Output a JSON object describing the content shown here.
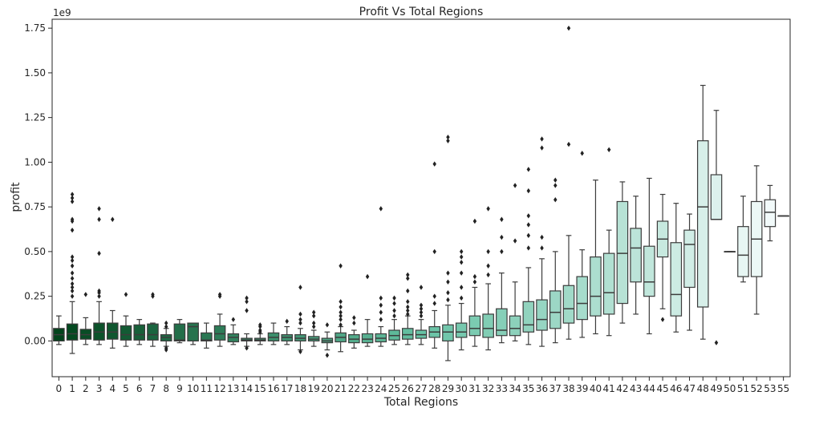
{
  "chart_data": {
    "type": "box",
    "title": "Profit Vs Total Regions",
    "xlabel": "Total Regions",
    "ylabel": "profit",
    "y_offset_label": "1e9",
    "y_unit_multiplier": 1000000000,
    "ylim": [
      -0.2,
      1.8
    ],
    "yticks": [
      0.0,
      0.25,
      0.5,
      0.75,
      1.0,
      1.25,
      1.5,
      1.75
    ],
    "ytick_labels": [
      "0.00",
      "0.25",
      "0.50",
      "0.75",
      "1.00",
      "1.25",
      "1.50",
      "1.75"
    ],
    "categories": [
      "0",
      "1",
      "2",
      "3",
      "4",
      "5",
      "6",
      "7",
      "8",
      "9",
      "10",
      "11",
      "12",
      "13",
      "14",
      "15",
      "16",
      "17",
      "18",
      "19",
      "20",
      "21",
      "22",
      "23",
      "24",
      "25",
      "26",
      "27",
      "28",
      "29",
      "30",
      "31",
      "32",
      "33",
      "34",
      "35",
      "36",
      "37",
      "38",
      "39",
      "40",
      "41",
      "42",
      "43",
      "44",
      "45",
      "46",
      "47",
      "48",
      "49",
      "50",
      "51",
      "52",
      "53",
      "55"
    ],
    "colors": {
      "palette_start": "#00441b",
      "palette_mid": "#66c2a4",
      "palette_end": "#f7fcfd",
      "line": "#3c3c3c",
      "flier": "#222222"
    },
    "boxes": [
      {
        "category": "0",
        "whislo": -0.02,
        "q1": 0.0,
        "med": 0.035,
        "q3": 0.07,
        "whishi": 0.14,
        "fliers": []
      },
      {
        "category": "1",
        "whislo": -0.07,
        "q1": 0.005,
        "med": 0.04,
        "q3": 0.095,
        "whishi": 0.22,
        "fliers": [
          0.25,
          0.28,
          0.3,
          0.32,
          0.35,
          0.38,
          0.42,
          0.45,
          0.47,
          0.62,
          0.67,
          0.68,
          0.78,
          0.8,
          0.82
        ]
      },
      {
        "category": "2",
        "whislo": -0.02,
        "q1": 0.01,
        "med": 0.035,
        "q3": 0.065,
        "whishi": 0.13,
        "fliers": [
          0.26
        ]
      },
      {
        "category": "3",
        "whislo": -0.02,
        "q1": 0.005,
        "med": 0.05,
        "q3": 0.1,
        "whishi": 0.22,
        "fliers": [
          0.25,
          0.27,
          0.28,
          0.49,
          0.68,
          0.74
        ]
      },
      {
        "category": "4",
        "whislo": -0.04,
        "q1": 0.01,
        "med": 0.05,
        "q3": 0.1,
        "whishi": 0.17,
        "fliers": [
          0.68
        ]
      },
      {
        "category": "5",
        "whislo": -0.03,
        "q1": 0.005,
        "med": 0.035,
        "q3": 0.085,
        "whishi": 0.14,
        "fliers": [
          0.26
        ]
      },
      {
        "category": "6",
        "whislo": -0.02,
        "q1": 0.005,
        "med": 0.035,
        "q3": 0.09,
        "whishi": 0.12,
        "fliers": []
      },
      {
        "category": "7",
        "whislo": -0.03,
        "q1": 0.005,
        "med": 0.035,
        "q3": 0.095,
        "whishi": 0.1,
        "fliers": [
          0.25,
          0.26
        ]
      },
      {
        "category": "8",
        "whislo": -0.03,
        "q1": 0.0,
        "med": 0.02,
        "q3": 0.035,
        "whishi": 0.07,
        "fliers": [
          -0.05,
          -0.04,
          0.08,
          0.1
        ]
      },
      {
        "category": "9",
        "whislo": -0.01,
        "q1": 0.0,
        "med": 0.005,
        "q3": 0.095,
        "whishi": 0.12,
        "fliers": []
      },
      {
        "category": "10",
        "whislo": -0.02,
        "q1": 0.0,
        "med": 0.08,
        "q3": 0.1,
        "whishi": 0.1,
        "fliers": []
      },
      {
        "category": "11",
        "whislo": -0.04,
        "q1": 0.0,
        "med": 0.005,
        "q3": 0.045,
        "whishi": 0.1,
        "fliers": []
      },
      {
        "category": "12",
        "whislo": -0.03,
        "q1": 0.005,
        "med": 0.04,
        "q3": 0.085,
        "whishi": 0.15,
        "fliers": [
          0.25,
          0.26
        ]
      },
      {
        "category": "13",
        "whislo": -0.02,
        "q1": -0.005,
        "med": 0.02,
        "q3": 0.04,
        "whishi": 0.09,
        "fliers": [
          0.12
        ]
      },
      {
        "category": "14",
        "whislo": -0.03,
        "q1": 0.0,
        "med": 0.005,
        "q3": 0.015,
        "whishi": 0.04,
        "fliers": [
          -0.04,
          0.17,
          0.22,
          0.24
        ]
      },
      {
        "category": "15",
        "whislo": -0.02,
        "q1": 0.0,
        "med": 0.005,
        "q3": 0.015,
        "whishi": 0.04,
        "fliers": [
          0.05,
          0.06,
          0.08,
          0.09
        ]
      },
      {
        "category": "16",
        "whislo": -0.02,
        "q1": 0.0,
        "med": 0.02,
        "q3": 0.045,
        "whishi": 0.1,
        "fliers": []
      },
      {
        "category": "17",
        "whislo": -0.02,
        "q1": 0.0,
        "med": 0.02,
        "q3": 0.035,
        "whishi": 0.08,
        "fliers": [
          0.11
        ]
      },
      {
        "category": "18",
        "whislo": -0.05,
        "q1": 0.0,
        "med": 0.015,
        "q3": 0.035,
        "whishi": 0.07,
        "fliers": [
          -0.06,
          0.1,
          0.12,
          0.15,
          0.3
        ]
      },
      {
        "category": "19",
        "whislo": -0.03,
        "q1": 0.0,
        "med": 0.01,
        "q3": 0.025,
        "whishi": 0.06,
        "fliers": [
          0.08,
          0.1,
          0.14,
          0.16
        ]
      },
      {
        "category": "20",
        "whislo": -0.05,
        "q1": -0.01,
        "med": 0.0,
        "q3": 0.015,
        "whishi": 0.05,
        "fliers": [
          -0.08,
          0.09
        ]
      },
      {
        "category": "21",
        "whislo": -0.06,
        "q1": -0.005,
        "med": 0.02,
        "q3": 0.045,
        "whishi": 0.08,
        "fliers": [
          0.09,
          0.12,
          0.14,
          0.16,
          0.19,
          0.22,
          0.42
        ]
      },
      {
        "category": "22",
        "whislo": -0.04,
        "q1": -0.01,
        "med": 0.01,
        "q3": 0.035,
        "whishi": 0.06,
        "fliers": [
          0.1,
          0.13
        ]
      },
      {
        "category": "23",
        "whislo": -0.03,
        "q1": -0.01,
        "med": 0.01,
        "q3": 0.04,
        "whishi": 0.12,
        "fliers": [
          0.36
        ]
      },
      {
        "category": "24",
        "whislo": -0.03,
        "q1": -0.005,
        "med": 0.015,
        "q3": 0.04,
        "whishi": 0.08,
        "fliers": [
          0.12,
          0.16,
          0.2,
          0.24,
          0.74
        ]
      },
      {
        "category": "25",
        "whislo": -0.02,
        "q1": 0.005,
        "med": 0.03,
        "q3": 0.06,
        "whishi": 0.12,
        "fliers": [
          0.14,
          0.17,
          0.21,
          0.24
        ]
      },
      {
        "category": "26",
        "whislo": -0.02,
        "q1": 0.01,
        "med": 0.035,
        "q3": 0.07,
        "whishi": 0.14,
        "fliers": [
          0.15,
          0.17,
          0.19,
          0.22,
          0.28,
          0.35,
          0.37
        ]
      },
      {
        "category": "27",
        "whislo": -0.02,
        "q1": 0.015,
        "med": 0.035,
        "q3": 0.06,
        "whishi": 0.12,
        "fliers": [
          0.14,
          0.16,
          0.18,
          0.2,
          0.3
        ]
      },
      {
        "category": "28",
        "whislo": -0.04,
        "q1": 0.02,
        "med": 0.05,
        "q3": 0.08,
        "whishi": 0.17,
        "fliers": [
          0.21,
          0.25,
          0.5,
          0.99
        ]
      },
      {
        "category": "29",
        "whislo": -0.11,
        "q1": 0.0,
        "med": 0.05,
        "q3": 0.09,
        "whishi": 0.2,
        "fliers": [
          0.23,
          0.27,
          0.33,
          0.38,
          1.12,
          1.14
        ]
      },
      {
        "category": "30",
        "whislo": -0.05,
        "q1": 0.02,
        "med": 0.05,
        "q3": 0.1,
        "whishi": 0.21,
        "fliers": [
          0.24,
          0.3,
          0.38,
          0.44,
          0.47,
          0.5
        ]
      },
      {
        "category": "31",
        "whislo": -0.03,
        "q1": 0.03,
        "med": 0.07,
        "q3": 0.14,
        "whishi": 0.3,
        "fliers": [
          0.33,
          0.36,
          0.67
        ]
      },
      {
        "category": "32",
        "whislo": -0.05,
        "q1": 0.02,
        "med": 0.07,
        "q3": 0.15,
        "whishi": 0.32,
        "fliers": [
          0.37,
          0.42,
          0.5,
          0.74
        ]
      },
      {
        "category": "33",
        "whislo": -0.01,
        "q1": 0.03,
        "med": 0.06,
        "q3": 0.18,
        "whishi": 0.38,
        "fliers": [
          0.5,
          0.58,
          0.68
        ]
      },
      {
        "category": "34",
        "whislo": 0.0,
        "q1": 0.03,
        "med": 0.07,
        "q3": 0.14,
        "whishi": 0.33,
        "fliers": [
          0.56,
          0.87
        ]
      },
      {
        "category": "35",
        "whislo": -0.02,
        "q1": 0.05,
        "med": 0.09,
        "q3": 0.22,
        "whishi": 0.41,
        "fliers": [
          0.52,
          0.59,
          0.65,
          0.7,
          0.84,
          0.96
        ]
      },
      {
        "category": "36",
        "whislo": -0.03,
        "q1": 0.06,
        "med": 0.12,
        "q3": 0.23,
        "whishi": 0.46,
        "fliers": [
          0.52,
          0.58,
          1.08,
          1.13
        ]
      },
      {
        "category": "37",
        "whislo": -0.01,
        "q1": 0.07,
        "med": 0.16,
        "q3": 0.28,
        "whishi": 0.5,
        "fliers": [
          0.79,
          0.87,
          0.9
        ]
      },
      {
        "category": "38",
        "whislo": 0.01,
        "q1": 0.1,
        "med": 0.18,
        "q3": 0.31,
        "whishi": 0.59,
        "fliers": [
          1.1,
          1.75
        ]
      },
      {
        "category": "39",
        "whislo": 0.02,
        "q1": 0.12,
        "med": 0.21,
        "q3": 0.36,
        "whishi": 0.51,
        "fliers": [
          1.05
        ]
      },
      {
        "category": "40",
        "whislo": 0.04,
        "q1": 0.14,
        "med": 0.25,
        "q3": 0.47,
        "whishi": 0.9,
        "fliers": []
      },
      {
        "category": "41",
        "whislo": 0.03,
        "q1": 0.15,
        "med": 0.27,
        "q3": 0.49,
        "whishi": 0.62,
        "fliers": [
          1.07
        ]
      },
      {
        "category": "42",
        "whislo": 0.1,
        "q1": 0.21,
        "med": 0.49,
        "q3": 0.78,
        "whishi": 0.89,
        "fliers": []
      },
      {
        "category": "43",
        "whislo": 0.15,
        "q1": 0.33,
        "med": 0.52,
        "q3": 0.63,
        "whishi": 0.81,
        "fliers": []
      },
      {
        "category": "44",
        "whislo": 0.04,
        "q1": 0.25,
        "med": 0.33,
        "q3": 0.53,
        "whishi": 0.91,
        "fliers": []
      },
      {
        "category": "45",
        "whislo": 0.18,
        "q1": 0.47,
        "med": 0.57,
        "q3": 0.67,
        "whishi": 0.82,
        "fliers": [
          0.12
        ]
      },
      {
        "category": "46",
        "whislo": 0.05,
        "q1": 0.14,
        "med": 0.26,
        "q3": 0.55,
        "whishi": 0.77,
        "fliers": []
      },
      {
        "category": "47",
        "whislo": 0.06,
        "q1": 0.3,
        "med": 0.54,
        "q3": 0.62,
        "whishi": 0.71,
        "fliers": []
      },
      {
        "category": "48",
        "whislo": 0.01,
        "q1": 0.19,
        "med": 0.75,
        "q3": 1.12,
        "whishi": 1.43,
        "fliers": []
      },
      {
        "category": "49",
        "whislo": 0.68,
        "q1": 0.68,
        "med": 0.68,
        "q3": 0.93,
        "whishi": 1.29,
        "fliers": [
          -0.01
        ]
      },
      {
        "category": "50",
        "whislo": 0.5,
        "q1": 0.5,
        "med": 0.5,
        "q3": 0.5,
        "whishi": 0.5,
        "fliers": []
      },
      {
        "category": "51",
        "whislo": 0.33,
        "q1": 0.36,
        "med": 0.48,
        "q3": 0.64,
        "whishi": 0.81,
        "fliers": []
      },
      {
        "category": "52",
        "whislo": 0.15,
        "q1": 0.36,
        "med": 0.57,
        "q3": 0.78,
        "whishi": 0.98,
        "fliers": []
      },
      {
        "category": "53",
        "whislo": 0.56,
        "q1": 0.64,
        "med": 0.72,
        "q3": 0.79,
        "whishi": 0.87,
        "fliers": []
      },
      {
        "category": "55",
        "whislo": 0.7,
        "q1": 0.7,
        "med": 0.7,
        "q3": 0.7,
        "whishi": 0.7,
        "fliers": []
      }
    ]
  }
}
